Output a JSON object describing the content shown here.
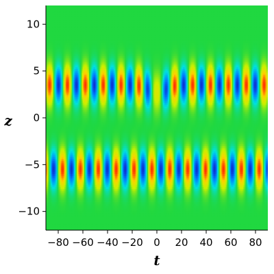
{
  "chart_data": {
    "type": "heatmap",
    "title": "",
    "xlabel": "t",
    "ylabel": "z",
    "xlim": [
      -90,
      90
    ],
    "ylim": [
      -12,
      12
    ],
    "x_ticks": [
      -80,
      -60,
      -40,
      -20,
      0,
      20,
      40,
      60,
      80
    ],
    "x_tick_labels": [
      "−80",
      "−60",
      "−40",
      "−20",
      "0",
      "20",
      "40",
      "60",
      "80"
    ],
    "y_ticks": [
      10,
      5,
      0,
      -5,
      -10
    ],
    "y_tick_labels": [
      "10",
      "5",
      "0",
      "−5",
      "−10"
    ],
    "grid": false,
    "legend": "none",
    "colormap": [
      "#1010c0",
      "#0080ff",
      "#00e0e0",
      "#20d840",
      "#c8f000",
      "#ffd000",
      "#ff3000"
    ],
    "background_color": "#22d838",
    "field": {
      "description_of_bands": "two periodic wave-train bands along t",
      "bands": [
        {
          "center_z": 3.5,
          "peak_color": "#ff3000"
        },
        {
          "center_z": -5.5,
          "peak_color": "#ff3000"
        }
      ],
      "dip_near_t": 0
    }
  }
}
